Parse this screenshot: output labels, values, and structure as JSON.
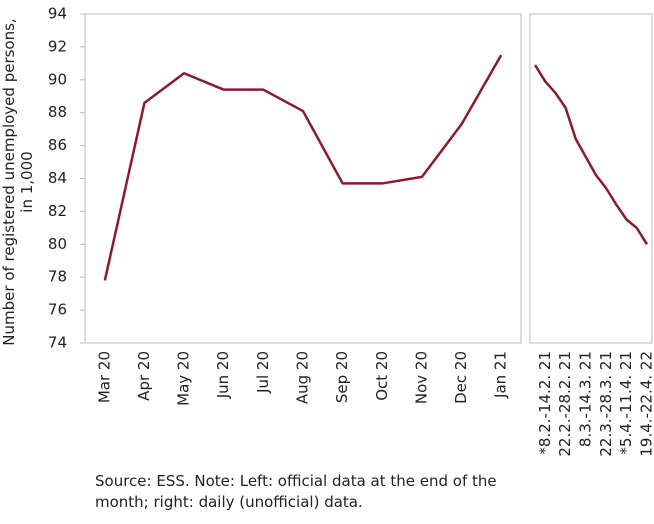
{
  "chart_data": [
    {
      "type": "line",
      "ylabel": "Number of registered unemployed persons, in 1,000",
      "categories": [
        "Mar 20",
        "Apr 20",
        "May 20",
        "Jun 20",
        "Jul 20",
        "Aug 20",
        "Sep 20",
        "Oct 20",
        "Nov 20",
        "Dec 20",
        "Jan 21"
      ],
      "values": [
        77.8,
        88.6,
        90.4,
        89.4,
        89.4,
        88.1,
        83.7,
        83.7,
        84.1,
        87.3,
        91.5
      ],
      "color": "#8b1a2e",
      "ylim": [
        74,
        94
      ],
      "yticks": [
        74,
        76,
        78,
        80,
        82,
        84,
        86,
        88,
        90,
        92,
        94
      ]
    },
    {
      "type": "line",
      "categories": [
        null,
        "*8.2.-14.2. 21",
        null,
        "22.2.-28.2. 21",
        null,
        "8.3.-14.3. 21",
        null,
        "22.3.-28.3. 21",
        null,
        "*5.4.-11.4. 21",
        null,
        "19.4.-22.4. 22"
      ],
      "values": [
        90.9,
        89.9,
        89.2,
        88.3,
        86.4,
        85.3,
        84.2,
        83.4,
        82.4,
        81.5,
        81.0,
        80.0
      ],
      "color": "#8b1a2e",
      "ylim": [
        74,
        94
      ]
    }
  ],
  "note": "Source: ESS. Note: Left: official data at the end of the month; right: daily (unofficial) data."
}
